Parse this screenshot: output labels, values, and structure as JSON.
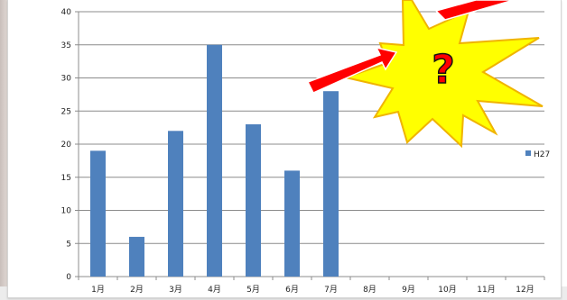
{
  "chart_data": {
    "type": "bar",
    "categories": [
      "1月",
      "2月",
      "3月",
      "4月",
      "5月",
      "6月",
      "7月",
      "8月",
      "9月",
      "10月",
      "11月",
      "12月"
    ],
    "series": [
      {
        "name": "H27",
        "values": [
          19,
          6,
          22,
          35,
          23,
          16,
          28,
          null,
          null,
          null,
          null,
          null
        ],
        "color": "#4f81bd"
      }
    ],
    "ylim": [
      0,
      40
    ],
    "yticks": [
      0,
      5,
      10,
      15,
      20,
      25,
      30,
      35,
      40
    ],
    "grid": true,
    "legend_position": "right",
    "annotation": {
      "type": "starburst-callout",
      "text": "?",
      "fill": "#ffff00",
      "stroke": "#f0b400",
      "arrow_color": "#ff0000",
      "text_color": "#ff0000"
    }
  }
}
